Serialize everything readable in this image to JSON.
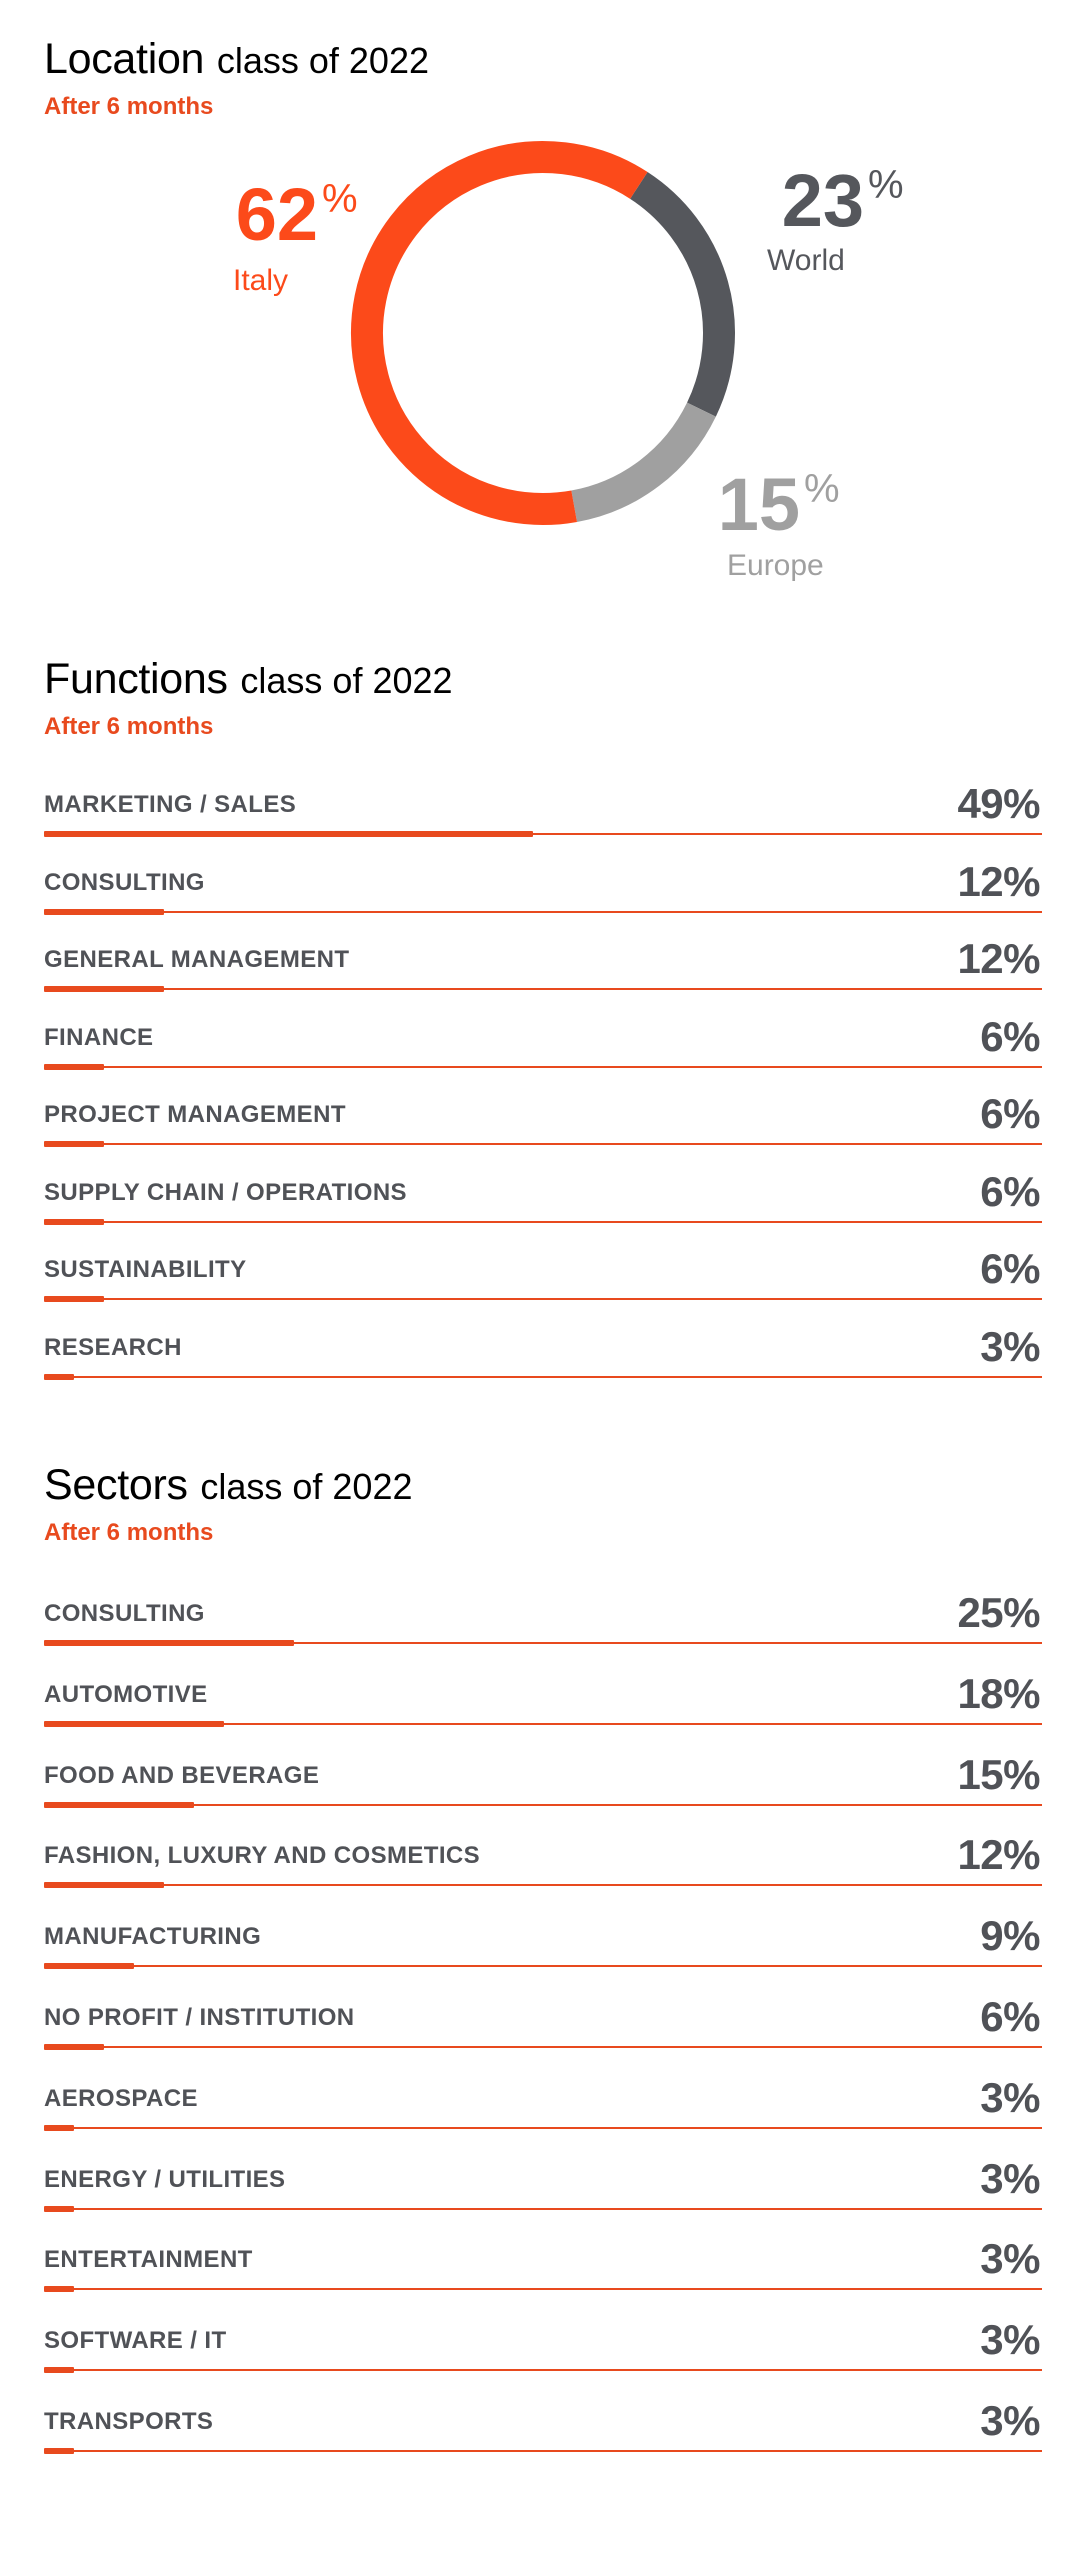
{
  "location": {
    "title": "Location",
    "subtitle": "class of 2022",
    "period": "After 6 months",
    "colors": {
      "Italy": "#fc4a1a",
      "World": "#55575c",
      "Europe": "#a0a0a0"
    }
  },
  "functions": {
    "title": "Functions",
    "subtitle": "class of 2022",
    "period": "After 6 months"
  },
  "sectors": {
    "title": "Sectors",
    "subtitle": "class of 2022",
    "period": "After 6 months"
  },
  "chart_data": [
    {
      "type": "pie",
      "title": "Location class of 2022",
      "subtitle": "After 6 months",
      "categories": [
        "Italy",
        "World",
        "Europe"
      ],
      "values": [
        62,
        23,
        15
      ],
      "value_suffix": "%"
    },
    {
      "type": "bar",
      "title": "Functions class of 2022",
      "subtitle": "After 6 months",
      "categories": [
        "MARKETING / SALES",
        "CONSULTING",
        "GENERAL MANAGEMENT",
        "FINANCE",
        "PROJECT MANAGEMENT",
        "SUPPLY CHAIN / OPERATIONS",
        "SUSTAINABILITY",
        "RESEARCH"
      ],
      "values": [
        49,
        12,
        12,
        6,
        6,
        6,
        6,
        3
      ],
      "value_suffix": "%"
    },
    {
      "type": "bar",
      "title": "Sectors class of 2022",
      "subtitle": "After 6 months",
      "categories": [
        "CONSULTING",
        "AUTOMOTIVE",
        "FOOD AND BEVERAGE",
        "FASHION, LUXURY AND COSMETICS",
        "MANUFACTURING",
        "NO PROFIT / INSTITUTION",
        "AEROSPACE",
        "ENERGY / UTILITIES",
        "ENTERTAINMENT",
        "SOFTWARE / IT",
        "TRANSPORTS"
      ],
      "values": [
        25,
        18,
        15,
        12,
        9,
        6,
        3,
        3,
        3,
        3,
        3
      ],
      "value_suffix": "%"
    }
  ]
}
